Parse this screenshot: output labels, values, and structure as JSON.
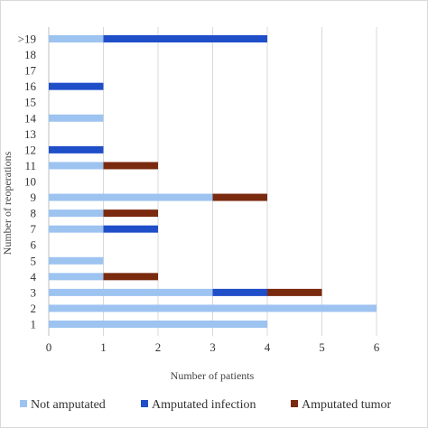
{
  "chart_data": {
    "type": "bar",
    "orientation": "horizontal",
    "stacked": true,
    "categories": [
      "1",
      "2",
      "3",
      "4",
      "5",
      "6",
      "7",
      "8",
      "9",
      "10",
      "11",
      "12",
      "13",
      "14",
      "15",
      "16",
      "17",
      "18",
      ">19"
    ],
    "series": [
      {
        "name": "Not amputated",
        "color": "#9dc3f0",
        "values": [
          4,
          6,
          3,
          1,
          1,
          0,
          1,
          1,
          3,
          0,
          1,
          0,
          0,
          1,
          0,
          0,
          0,
          0,
          1
        ]
      },
      {
        "name": "Amputated infection",
        "color": "#1f4ec9",
        "values": [
          0,
          0,
          1,
          0,
          0,
          0,
          1,
          0,
          0,
          0,
          0,
          1,
          0,
          0,
          0,
          1,
          0,
          0,
          3
        ]
      },
      {
        "name": "Amputated tumor",
        "color": "#7a2a0f",
        "values": [
          0,
          0,
          1,
          1,
          0,
          0,
          0,
          1,
          1,
          0,
          1,
          0,
          0,
          0,
          0,
          0,
          0,
          0,
          0
        ]
      }
    ],
    "xlabel": "Number of patients",
    "ylabel": "Number of reoperations",
    "xlim": [
      0,
      6
    ],
    "xticks": [
      "0",
      "1",
      "2",
      "3",
      "4",
      "5",
      "6"
    ],
    "grid": "vertical",
    "legend": "bottom"
  }
}
